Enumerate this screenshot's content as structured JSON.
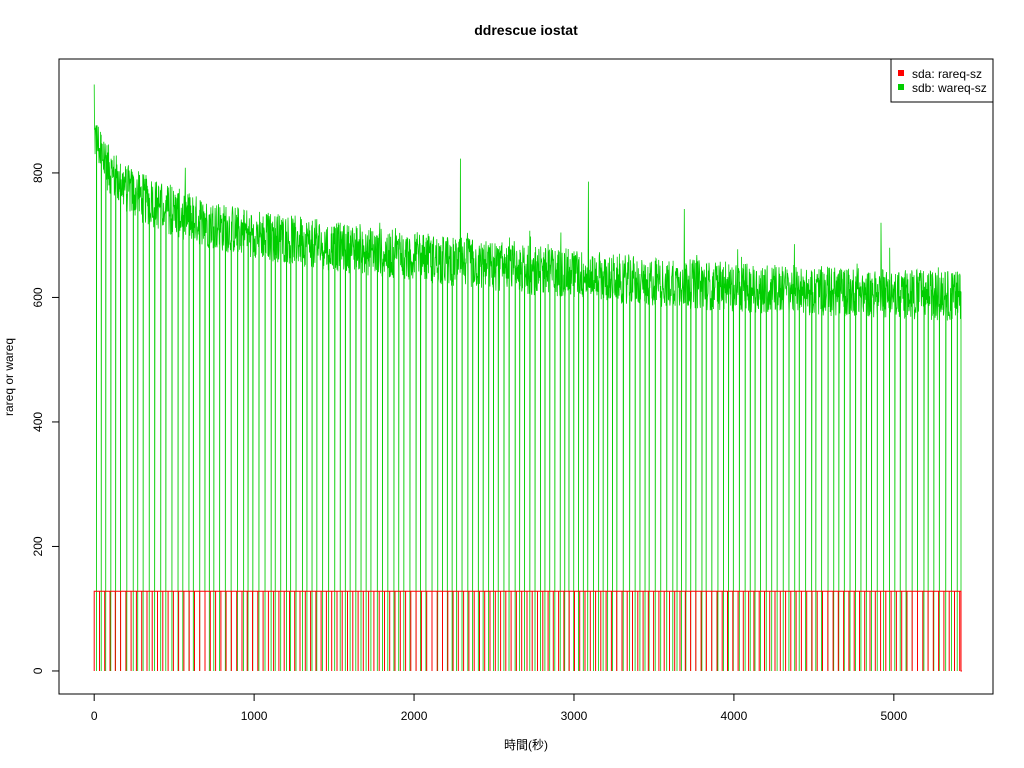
{
  "chart_data": {
    "type": "line",
    "title": "ddrescue iostat",
    "xlabel": "時間(秒)",
    "ylabel": "rareq or wareq",
    "xlim": [
      -220,
      5620
    ],
    "ylim": [
      -37,
      983
    ],
    "x_ticks": [
      0,
      1000,
      2000,
      3000,
      4000,
      5000
    ],
    "y_ticks": [
      0,
      200,
      400,
      600,
      800
    ],
    "grid": false,
    "legend_position": "top-right",
    "series": [
      {
        "name": "sda: rareq-sz",
        "color": "#ff0000",
        "pattern": "square-pulse",
        "high": 128,
        "low": 0,
        "period_s": 33,
        "start_s": 0,
        "end_s": 5420
      },
      {
        "name": "sdb: wareq-sz",
        "color": "#00cd00",
        "pattern": "noisy-decay-with-dropouts",
        "x": [
          0,
          100,
          200,
          300,
          400,
          500,
          600,
          700,
          800,
          900,
          1000,
          1100,
          1200,
          1300,
          1400,
          1500,
          1600,
          1700,
          1800,
          1900,
          2000,
          2100,
          2200,
          2300,
          2400,
          2500,
          2600,
          2700,
          2800,
          2900,
          3000,
          3100,
          3200,
          3300,
          3400,
          3500,
          3600,
          3700,
          3800,
          3900,
          4000,
          4100,
          4200,
          4300,
          4400,
          4500,
          4600,
          4700,
          4800,
          4900,
          5000,
          5100,
          5200,
          5300,
          5420
        ],
        "y": [
          860,
          800,
          775,
          760,
          748,
          738,
          728,
          720,
          712,
          708,
          704,
          698,
          694,
          690,
          686,
          682,
          678,
          674,
          672,
          668,
          666,
          662,
          660,
          656,
          654,
          650,
          648,
          645,
          642,
          640,
          638,
          635,
          632,
          630,
          628,
          625,
          623,
          622,
          620,
          618,
          617,
          615,
          614,
          613,
          612,
          611,
          610,
          609,
          608,
          607,
          606,
          605,
          604,
          603,
          602
        ],
        "noise_amplitude": 40,
        "dropout_period_s": 33,
        "spikes": [
          [
            0,
            942
          ],
          [
            2290,
            823
          ],
          [
            3090,
            786
          ],
          [
            3690,
            742
          ],
          [
            4920,
            720
          ]
        ]
      }
    ]
  }
}
